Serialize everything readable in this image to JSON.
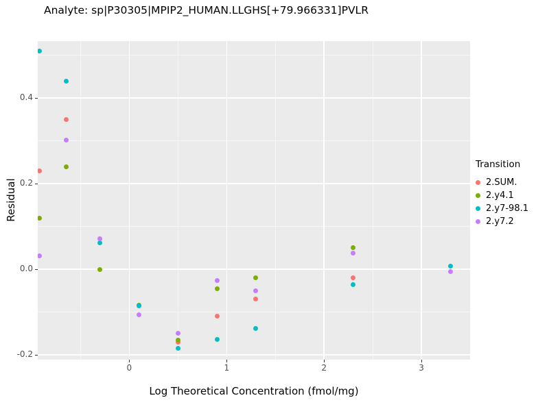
{
  "chart_data": {
    "type": "scatter",
    "title": "Analyte: sp|P30305|MPIP2_HUMAN.LLGHS[+79.966331]PVLR",
    "xlabel": "Log Theoretical Concentration (fmol/mg)",
    "ylabel": "Residual",
    "legend_title": "Transition",
    "legend_position": "right",
    "panel_background": "#EBEBEB",
    "grid_color": "#FFFFFF",
    "grid": true,
    "xlim": [
      -0.94,
      3.5
    ],
    "ylim": [
      -0.211,
      0.533
    ],
    "x_ticks": [
      0,
      1,
      2,
      3
    ],
    "x_tick_labels": [
      "0",
      "1",
      "2",
      "3"
    ],
    "x_minor_ticks": [
      -0.5,
      0.5,
      1.5,
      2.5,
      3.5
    ],
    "y_ticks": [
      -0.2,
      0.0,
      0.2,
      0.4
    ],
    "y_tick_labels": [
      "-0.2",
      "0.0",
      "0.2",
      "0.4"
    ],
    "y_minor_ticks": [
      -0.1,
      0.1,
      0.3,
      0.5
    ],
    "series": [
      {
        "name": "2.SUM.",
        "color": "#F8766D",
        "points": [
          [
            -0.92,
            0.23
          ],
          [
            -0.65,
            0.35
          ],
          [
            0.5,
            -0.17
          ],
          [
            0.9,
            -0.11
          ],
          [
            1.3,
            -0.07
          ],
          [
            2.3,
            -0.02
          ]
        ]
      },
      {
        "name": "2.y4.1",
        "color": "#7CAE00",
        "points": [
          [
            -0.92,
            0.12
          ],
          [
            -0.65,
            0.24
          ],
          [
            -0.3,
            0.0
          ],
          [
            0.1,
            -0.083
          ],
          [
            0.5,
            -0.165
          ],
          [
            0.9,
            -0.045
          ],
          [
            1.3,
            -0.02
          ],
          [
            2.3,
            0.05
          ]
        ]
      },
      {
        "name": "2.y7-98.1",
        "color": "#00BFC4",
        "points": [
          [
            -0.92,
            0.51
          ],
          [
            -0.65,
            0.44
          ],
          [
            -0.3,
            0.062
          ],
          [
            0.1,
            -0.086
          ],
          [
            0.5,
            -0.185
          ],
          [
            0.9,
            -0.163
          ],
          [
            1.3,
            -0.138
          ],
          [
            2.3,
            -0.035
          ],
          [
            3.3,
            0.008
          ]
        ]
      },
      {
        "name": "2.y7.2",
        "color": "#C77CFF",
        "points": [
          [
            -0.92,
            0.032
          ],
          [
            -0.65,
            0.302
          ],
          [
            -0.3,
            0.072
          ],
          [
            0.1,
            -0.106
          ],
          [
            0.5,
            -0.15
          ],
          [
            0.9,
            -0.026
          ],
          [
            1.3,
            -0.05
          ],
          [
            2.3,
            0.038
          ],
          [
            3.3,
            -0.006
          ]
        ]
      }
    ]
  }
}
